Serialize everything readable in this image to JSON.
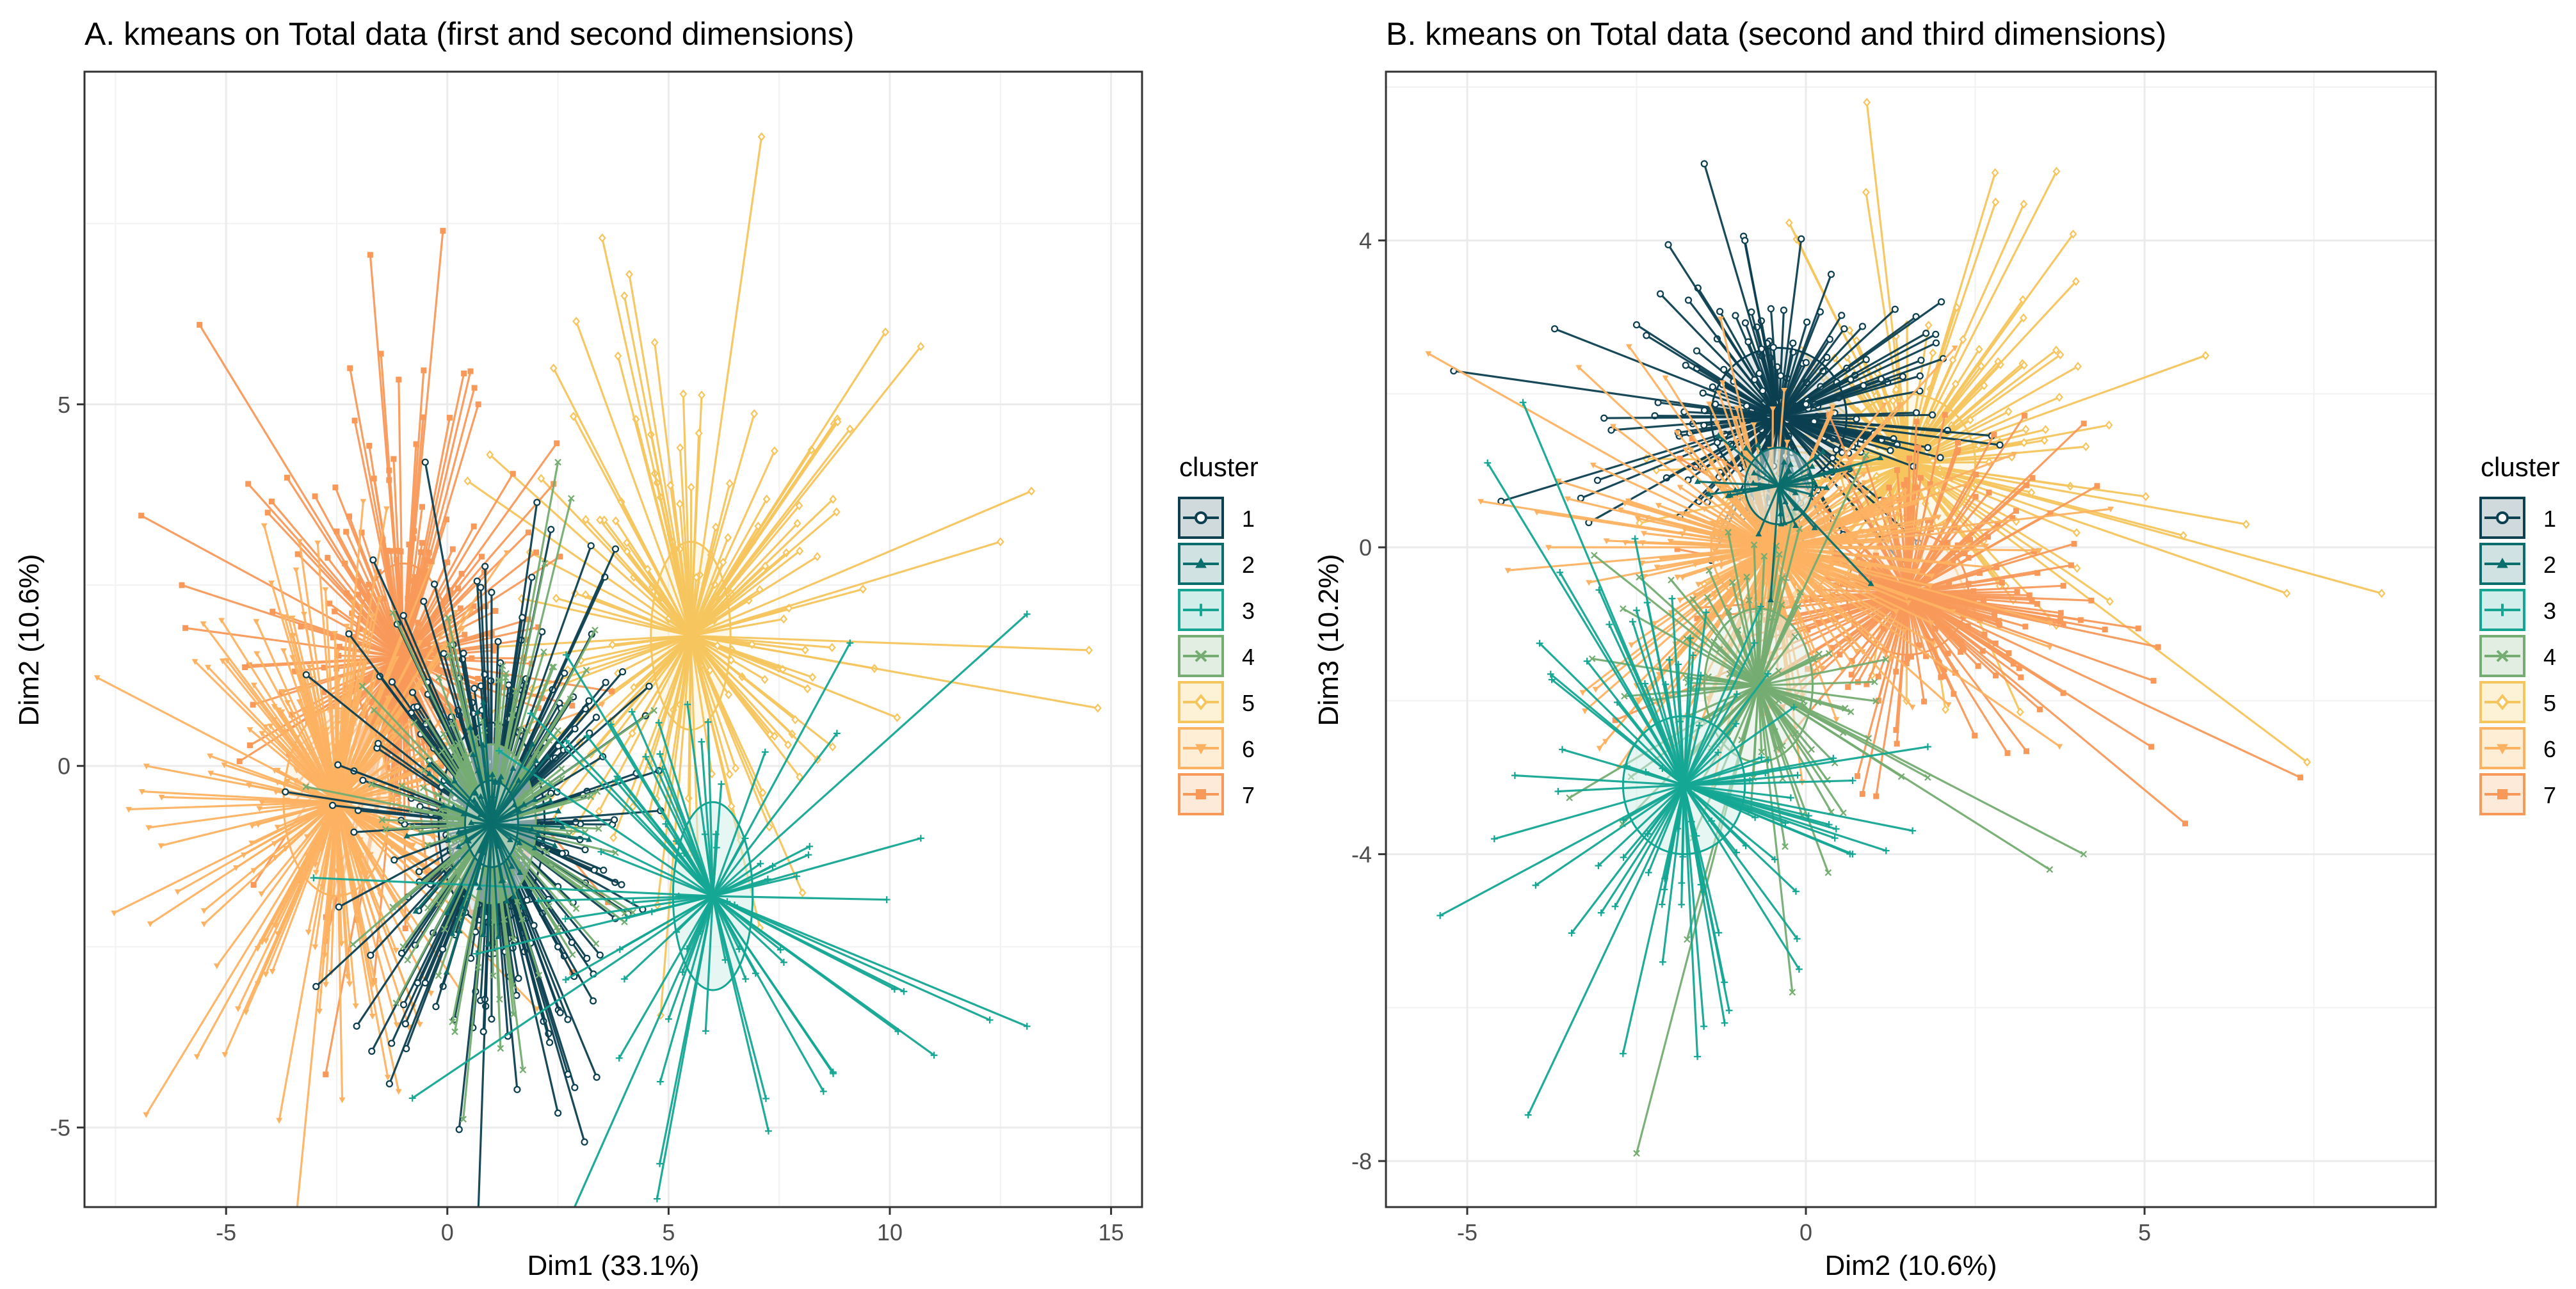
{
  "chart_data": [
    {
      "type": "scatter",
      "title": "A. kmeans on Total data (first and second dimensions)",
      "xlabel": "Dim1 (33.1%)",
      "ylabel": "Dim2 (10.6%)",
      "xlim": [
        -8.2,
        15.7
      ],
      "ylim": [
        -6.1,
        9.6
      ],
      "xticks": [
        -5,
        0,
        5,
        10,
        15
      ],
      "yticks": [
        -5,
        0,
        5
      ],
      "grid": true,
      "legend_position": "right",
      "legend_title": "cluster",
      "series": [
        {
          "name": "1",
          "center": [
            1.0,
            -0.8
          ],
          "radius": [
            1.2,
            1.4
          ],
          "spread": [
            1.6,
            1.9
          ],
          "count": 260,
          "rays": [
            [
              -0.5,
              4.2
            ],
            [
              1.0,
              2.4
            ],
            [
              3.8,
              3.0
            ],
            [
              1.0,
              -3.5
            ],
            [
              3.1,
              -5.2
            ],
            [
              2.5,
              -4.8
            ],
            [
              -0.5,
              -3.0
            ],
            [
              3.2,
              0.9
            ],
            [
              2.5,
              -2.5
            ],
            [
              -1.2,
              -1.3
            ]
          ]
        },
        {
          "name": "2",
          "center": [
            1.0,
            -0.8
          ],
          "radius": [
            0.6,
            0.6
          ],
          "spread": [
            0.8,
            0.7
          ],
          "count": 80,
          "rays": []
        },
        {
          "name": "3",
          "center": [
            6.0,
            -1.8
          ],
          "radius": [
            0.9,
            1.3
          ],
          "spread": [
            2.4,
            1.6
          ],
          "count": 70,
          "rays": [
            [
              13.1,
              2.1
            ],
            [
              9.1,
              1.7
            ],
            [
              13.1,
              -3.6
            ],
            [
              11.0,
              -4.0
            ],
            [
              4.8,
              -5.5
            ],
            [
              7.2,
              -4.6
            ],
            [
              8.5,
              -4.5
            ],
            [
              10.7,
              -1.0
            ],
            [
              3.8,
              -0.2
            ],
            [
              5.0,
              -3.5
            ]
          ]
        },
        {
          "name": "4",
          "center": [
            1.0,
            -0.8
          ],
          "radius": [
            1.0,
            1.1
          ],
          "spread": [
            1.4,
            1.3
          ],
          "count": 150,
          "rays": [
            [
              2.5,
              4.2
            ],
            [
              2.8,
              3.7
            ],
            [
              -1.0,
              -2.5
            ],
            [
              3.8,
              -1.2
            ],
            [
              2.2,
              2.8
            ],
            [
              -0.2,
              -2.9
            ]
          ]
        },
        {
          "name": "5",
          "center": [
            5.5,
            1.8
          ],
          "radius": [
            0.9,
            1.3
          ],
          "spread": [
            2.2,
            2.0
          ],
          "count": 140,
          "rays": [
            [
              7.1,
              8.7
            ],
            [
              3.5,
              7.3
            ],
            [
              10.7,
              5.8
            ],
            [
              9.9,
              6.0
            ],
            [
              14.5,
              1.6
            ],
            [
              14.7,
              0.8
            ],
            [
              13.2,
              3.8
            ],
            [
              12.5,
              3.1
            ],
            [
              2.4,
              5.5
            ],
            [
              4.0,
              6.5
            ]
          ]
        },
        {
          "name": "6",
          "center": [
            -2.5,
            -0.5
          ],
          "radius": [
            1.2,
            1.3
          ],
          "spread": [
            1.9,
            1.7
          ],
          "count": 240,
          "rays": [
            [
              -3.8,
              -4.9
            ],
            [
              -1.1,
              -4.5
            ],
            [
              -7.2,
              -0.6
            ],
            [
              -6.8,
              0.0
            ],
            [
              -3.5,
              1.5
            ],
            [
              -5.5,
              -2.0
            ]
          ]
        },
        {
          "name": "7",
          "center": [
            -1.0,
            1.5
          ],
          "radius": [
            1.1,
            1.3
          ],
          "spread": [
            1.7,
            1.7
          ],
          "count": 230,
          "rays": [
            [
              -5.6,
              6.1
            ],
            [
              -0.1,
              7.4
            ],
            [
              -1.5,
              5.7
            ],
            [
              -4.5,
              3.9
            ],
            [
              2.4,
              3.9
            ],
            [
              -6.0,
              2.5
            ],
            [
              0.7,
              5.0
            ],
            [
              -2.2,
              5.5
            ]
          ]
        }
      ]
    },
    {
      "type": "scatter",
      "title": "B. kmeans on Total data (second and third dimensions)",
      "xlabel": "Dim2 (10.6%)",
      "ylabel": "Dim3 (10.2%)",
      "xlim": [
        -6.2,
        9.3
      ],
      "ylim": [
        -8.6,
        6.2
      ],
      "xticks": [
        -5,
        0,
        5
      ],
      "yticks": [
        -8,
        -4,
        0,
        4
      ],
      "grid": true,
      "legend_position": "right",
      "legend_title": "cluster",
      "series": [
        {
          "name": "1",
          "center": [
            -0.4,
            1.7
          ],
          "radius": [
            1.0,
            0.9
          ],
          "spread": [
            1.1,
            0.9
          ],
          "count": 200,
          "rays": [
            [
              -5.2,
              2.3
            ],
            [
              -1.5,
              5.0
            ],
            [
              -0.9,
              4.0
            ],
            [
              2.0,
              3.2
            ],
            [
              -4.5,
              0.6
            ],
            [
              1.8,
              1.3
            ],
            [
              -2.5,
              2.9
            ]
          ]
        },
        {
          "name": "2",
          "center": [
            -0.4,
            0.8
          ],
          "radius": [
            0.5,
            0.5
          ],
          "spread": [
            0.6,
            0.5
          ],
          "count": 40,
          "rays": []
        },
        {
          "name": "3",
          "center": [
            -1.8,
            -3.1
          ],
          "radius": [
            0.9,
            0.9
          ],
          "spread": [
            1.2,
            1.4
          ],
          "count": 90,
          "rays": [
            [
              -5.4,
              -4.8
            ],
            [
              -4.7,
              1.1
            ],
            [
              -4.1,
              -7.4
            ],
            [
              -2.7,
              -6.6
            ],
            [
              1.8,
              -2.6
            ],
            [
              -4.6,
              -3.8
            ],
            [
              -1.2,
              -6.2
            ],
            [
              -0.1,
              -5.5
            ]
          ]
        },
        {
          "name": "4",
          "center": [
            -0.7,
            -1.8
          ],
          "radius": [
            0.8,
            1.0
          ],
          "spread": [
            1.0,
            1.1
          ],
          "count": 90,
          "rays": [
            [
              -2.5,
              -7.9
            ],
            [
              4.1,
              -4.0
            ],
            [
              3.6,
              -4.2
            ],
            [
              -0.2,
              -5.8
            ],
            [
              1.8,
              -3.0
            ],
            [
              -2.7,
              -0.8
            ]
          ]
        },
        {
          "name": "5",
          "center": [
            1.5,
            1.1
          ],
          "radius": [
            1.0,
            0.9
          ],
          "spread": [
            1.5,
            1.3
          ],
          "count": 150,
          "rays": [
            [
              8.5,
              -0.6
            ],
            [
              0.9,
              5.8
            ],
            [
              3.7,
              4.9
            ],
            [
              5.9,
              2.5
            ],
            [
              7.1,
              -0.6
            ],
            [
              7.4,
              -2.8
            ],
            [
              6.5,
              0.3
            ],
            [
              2.8,
              4.5
            ]
          ]
        },
        {
          "name": "6",
          "center": [
            -0.5,
            0.0
          ],
          "radius": [
            0.9,
            0.8
          ],
          "spread": [
            1.5,
            1.2
          ],
          "count": 250,
          "rays": [
            [
              -4.8,
              0.6
            ],
            [
              -4.4,
              -0.3
            ],
            [
              -3.8,
              0.0
            ],
            [
              3.6,
              -1.3
            ],
            [
              4.5,
              0.5
            ],
            [
              -2.5,
              -1.8
            ],
            [
              2.2,
              2.6
            ]
          ]
        },
        {
          "name": "7",
          "center": [
            1.5,
            -0.6
          ],
          "radius": [
            0.9,
            0.8
          ],
          "spread": [
            1.3,
            1.1
          ],
          "count": 200,
          "rays": [
            [
              7.3,
              -3.0
            ],
            [
              5.6,
              -3.6
            ],
            [
              4.3,
              0.8
            ],
            [
              5.1,
              -2.6
            ],
            [
              5.2,
              -1.3
            ],
            [
              3.8,
              -1.9
            ]
          ]
        }
      ]
    }
  ],
  "legend": {
    "colors": [
      "#0c3f50",
      "#0b6e6c",
      "#14a693",
      "#74ac71",
      "#f6c55d",
      "#fdb262",
      "#f8995a"
    ],
    "fills": [
      "#d0d9dc",
      "#d0e3e2",
      "#d2eeea",
      "#e2eee1",
      "#fdf2d6",
      "#feeed6",
      "#feead9"
    ],
    "shapes": [
      "circle",
      "triangle",
      "plus",
      "cross",
      "diamond",
      "triangle-down",
      "square"
    ]
  }
}
